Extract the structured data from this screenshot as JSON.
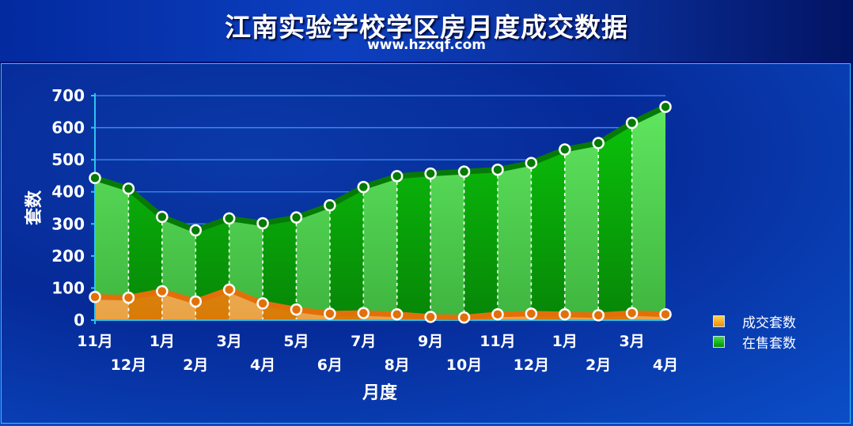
{
  "header": {
    "title": "江南实验学校学区房月度成交数据",
    "subtitle": "www.hzxqf.com"
  },
  "colors": {
    "sold": "#f28a14",
    "for_sale": "#079c07",
    "grid": "#3d8ff5",
    "axis": "#2fc4f2"
  },
  "chart_data": {
    "type": "area",
    "title": "江南实验学校学区房月度成交数据",
    "xlabel": "月度",
    "ylabel": "套数",
    "ylim": [
      0,
      700
    ],
    "yticks": [
      0,
      100,
      200,
      300,
      400,
      500,
      600,
      700
    ],
    "categories": [
      "11月",
      "12月",
      "1月",
      "2月",
      "3月",
      "4月",
      "5月",
      "6月",
      "7月",
      "8月",
      "9月",
      "10月",
      "11月",
      "12月",
      "1月",
      "2月",
      "3月",
      "4月"
    ],
    "series": [
      {
        "name": "成交套数",
        "values": [
          72,
          70,
          90,
          58,
          95,
          52,
          33,
          20,
          22,
          18,
          10,
          8,
          18,
          20,
          18,
          15,
          22,
          18
        ]
      },
      {
        "name": "在售套数",
        "values": [
          443,
          410,
          322,
          280,
          317,
          302,
          320,
          358,
          415,
          449,
          457,
          463,
          469,
          490,
          532,
          552,
          615,
          665
        ]
      }
    ],
    "legend_position": "right",
    "grid": true
  }
}
